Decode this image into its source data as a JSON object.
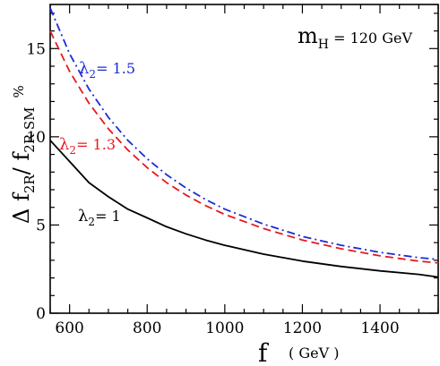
{
  "chart_data": {
    "type": "line",
    "title": "",
    "xlabel": "f",
    "xlabel_unit": "( GeV )",
    "ylabel_main": "Δ f",
    "ylabel_sub1": "2R",
    "ylabel_slash": "/ f",
    "ylabel_sub2": "2R SM",
    "ylabel_unit": "%",
    "xlim": [
      550,
      1550
    ],
    "ylim": [
      0,
      17.5
    ],
    "xticks": [
      600,
      800,
      1000,
      1200,
      1400
    ],
    "yticks": [
      0,
      5,
      10,
      15
    ],
    "annotation": {
      "main": "m",
      "sub": "H",
      "value": " = 120 GeV"
    },
    "series": [
      {
        "name": "λ2 = 1",
        "label_main": "λ",
        "label_sub": "2",
        "label_rest": "= 1",
        "color": "#000000",
        "style": "solid",
        "x": [
          550,
          600,
          650,
          700,
          750,
          800,
          850,
          900,
          950,
          1000,
          1100,
          1200,
          1300,
          1400,
          1500,
          1550
        ],
        "y": [
          9.8,
          8.6,
          7.4,
          6.6,
          5.9,
          5.4,
          4.9,
          4.5,
          4.15,
          3.85,
          3.35,
          2.95,
          2.65,
          2.4,
          2.2,
          2.05
        ]
      },
      {
        "name": "λ2 = 1.3",
        "label_main": "λ",
        "label_sub": "2",
        "label_rest": "= 1.3",
        "color": "#e8191f",
        "style": "dashed",
        "x": [
          550,
          600,
          650,
          700,
          750,
          800,
          850,
          900,
          950,
          1000,
          1100,
          1200,
          1300,
          1400,
          1500,
          1550
        ],
        "y": [
          16.0,
          13.7,
          11.9,
          10.45,
          9.25,
          8.25,
          7.4,
          6.7,
          6.1,
          5.6,
          4.8,
          4.15,
          3.65,
          3.25,
          2.95,
          2.85
        ]
      },
      {
        "name": "λ2 = 1.5",
        "label_main": "λ",
        "label_sub": "2",
        "label_rest": "= 1.5",
        "color": "#1a2bd6",
        "style": "dashdot",
        "x": [
          550,
          600,
          650,
          700,
          750,
          800,
          850,
          900,
          950,
          1000,
          1100,
          1200,
          1300,
          1400,
          1500,
          1550
        ],
        "y": [
          17.3,
          14.7,
          12.7,
          11.1,
          9.8,
          8.75,
          7.85,
          7.1,
          6.45,
          5.9,
          5.05,
          4.35,
          3.85,
          3.45,
          3.15,
          3.05
        ]
      }
    ]
  }
}
